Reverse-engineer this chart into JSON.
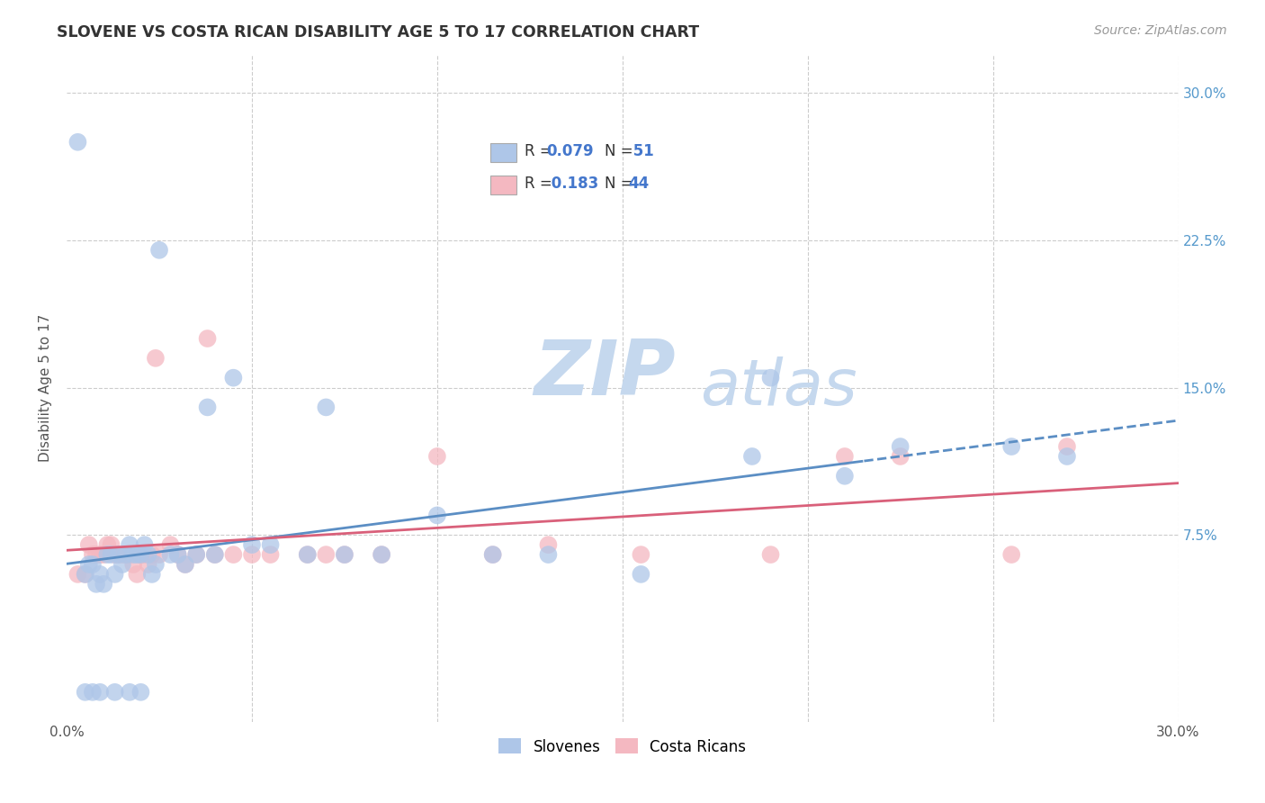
{
  "title": "SLOVENE VS COSTA RICAN DISABILITY AGE 5 TO 17 CORRELATION CHART",
  "source_text": "Source: ZipAtlas.com",
  "ylabel": "Disability Age 5 to 17",
  "xlim": [
    0.0,
    0.3
  ],
  "ylim": [
    -0.02,
    0.32
  ],
  "ytick_positions": [
    0.075,
    0.15,
    0.225,
    0.3
  ],
  "ytick_labels": [
    "7.5%",
    "15.0%",
    "22.5%",
    "30.0%"
  ],
  "xtick_positions": [
    0.0,
    0.05,
    0.1,
    0.15,
    0.2,
    0.25,
    0.3
  ],
  "xtick_labels": [
    "0.0%",
    "",
    "",
    "",
    "",
    "",
    "30.0%"
  ],
  "legend_r1": "R = 0.079",
  "legend_n1": "N =  51",
  "legend_r2": "R =  0.183",
  "legend_n2": "N =  44",
  "slovene_color": "#aec6e8",
  "costa_rican_color": "#f4b8c1",
  "trend_blue": "#5b8ec4",
  "trend_pink": "#d9607a",
  "background_color": "#ffffff",
  "grid_color": "#cccccc",
  "watermark_zip": "ZIP",
  "watermark_atlas": "atlas",
  "watermark_color": "#c5d8ee",
  "slovene_x": [
    0.003,
    0.005,
    0.006,
    0.007,
    0.008,
    0.009,
    0.01,
    0.011,
    0.012,
    0.013,
    0.014,
    0.015,
    0.016,
    0.017,
    0.018,
    0.019,
    0.02,
    0.021,
    0.022,
    0.023,
    0.024,
    0.025,
    0.028,
    0.03,
    0.032,
    0.035,
    0.038,
    0.04,
    0.045,
    0.05,
    0.055,
    0.065,
    0.07,
    0.075,
    0.085,
    0.1,
    0.115,
    0.13,
    0.155,
    0.19,
    0.21,
    0.225,
    0.255,
    0.27,
    0.185,
    0.005,
    0.007,
    0.009,
    0.013,
    0.017,
    0.02
  ],
  "slovene_y": [
    0.275,
    0.055,
    0.06,
    0.06,
    0.05,
    0.055,
    0.05,
    0.065,
    0.065,
    0.055,
    0.065,
    0.06,
    0.065,
    0.07,
    0.065,
    0.065,
    0.065,
    0.07,
    0.065,
    0.055,
    0.06,
    0.22,
    0.065,
    0.065,
    0.06,
    0.065,
    0.14,
    0.065,
    0.155,
    0.07,
    0.07,
    0.065,
    0.14,
    0.065,
    0.065,
    0.085,
    0.065,
    0.065,
    0.055,
    0.155,
    0.105,
    0.12,
    0.12,
    0.115,
    0.115,
    -0.005,
    -0.005,
    -0.005,
    -0.005,
    -0.005,
    -0.005
  ],
  "costa_rican_x": [
    0.003,
    0.005,
    0.006,
    0.007,
    0.008,
    0.009,
    0.01,
    0.011,
    0.012,
    0.013,
    0.014,
    0.015,
    0.016,
    0.017,
    0.018,
    0.019,
    0.02,
    0.021,
    0.022,
    0.023,
    0.024,
    0.025,
    0.028,
    0.03,
    0.032,
    0.035,
    0.038,
    0.04,
    0.045,
    0.05,
    0.055,
    0.065,
    0.07,
    0.075,
    0.085,
    0.1,
    0.115,
    0.13,
    0.155,
    0.19,
    0.21,
    0.225,
    0.255,
    0.27
  ],
  "costa_rican_y": [
    0.055,
    0.055,
    0.07,
    0.065,
    0.065,
    0.065,
    0.065,
    0.07,
    0.07,
    0.065,
    0.065,
    0.065,
    0.065,
    0.065,
    0.06,
    0.055,
    0.065,
    0.065,
    0.06,
    0.065,
    0.165,
    0.065,
    0.07,
    0.065,
    0.06,
    0.065,
    0.175,
    0.065,
    0.065,
    0.065,
    0.065,
    0.065,
    0.065,
    0.065,
    0.065,
    0.115,
    0.065,
    0.07,
    0.065,
    0.065,
    0.115,
    0.115,
    0.065,
    0.12
  ],
  "trend_line_split": 0.215
}
